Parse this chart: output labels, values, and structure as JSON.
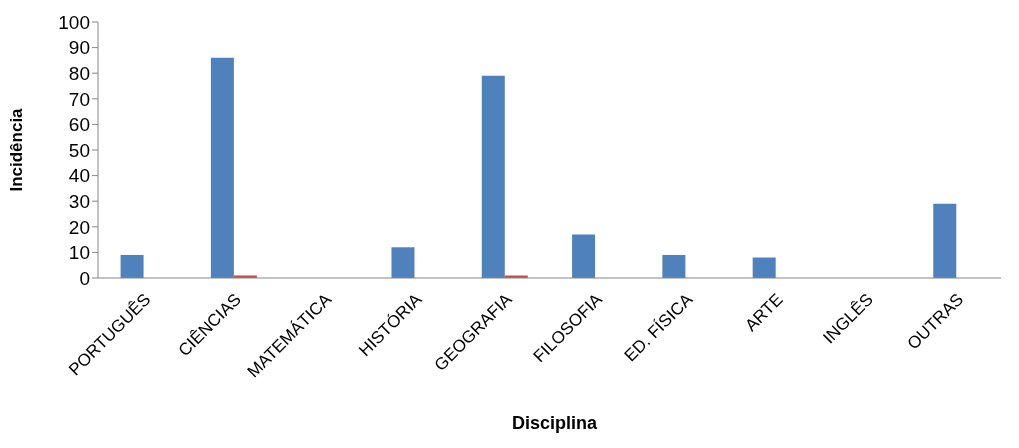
{
  "chart_data": {
    "type": "bar",
    "xlabel": "Disciplina",
    "ylabel": "Incidência",
    "categories": [
      "PORTUGUÊS",
      "CIÊNCIAS",
      "MATEMÁTICA",
      "HISTÓRIA",
      "GEOGRAFIA",
      "FILOSOFIA",
      "ED. FÍSICA",
      "ARTE",
      "INGLÊS",
      "OUTRAS"
    ],
    "series": [
      {
        "color": "#4f81bd",
        "values": [
          9,
          86,
          0,
          12,
          79,
          17,
          9,
          8,
          0,
          29
        ]
      },
      {
        "color": "#c0504d",
        "values": [
          0,
          1,
          0,
          0,
          1,
          0,
          0,
          0,
          0,
          0
        ]
      }
    ],
    "ylim": [
      0,
      100
    ],
    "yticks": [
      0,
      10,
      20,
      30,
      40,
      50,
      60,
      70,
      80,
      90,
      100
    ],
    "grid": false,
    "legend": false
  }
}
